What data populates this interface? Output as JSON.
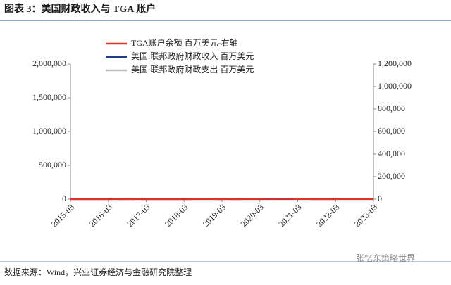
{
  "header": {
    "title": "图表 3：美国财政收入与 TGA 账户"
  },
  "chart_data": {
    "type": "line",
    "categories": [
      "2015-03",
      null,
      null,
      null,
      null,
      null,
      null,
      null,
      null,
      null,
      null,
      null,
      "2016-03",
      null,
      null,
      null,
      null,
      null,
      null,
      null,
      null,
      null,
      null,
      null,
      "2017-03",
      null,
      null,
      null,
      null,
      null,
      null,
      null,
      null,
      null,
      null,
      null,
      "2018-03",
      null,
      null,
      null,
      null,
      null,
      null,
      null,
      null,
      null,
      null,
      null,
      "2019-03",
      null,
      null,
      null,
      null,
      null,
      null,
      null,
      null,
      null,
      null,
      null,
      "2020-03",
      null,
      null,
      null,
      null,
      null,
      null,
      null,
      null,
      null,
      null,
      null,
      "2021-03",
      null,
      null,
      null,
      null,
      null,
      null,
      null,
      null,
      null,
      null,
      null,
      "2022-03",
      null,
      null,
      null,
      null,
      null,
      null,
      null,
      null,
      null,
      null,
      null,
      "2023-03"
    ],
    "series": [
      {
        "name": "TGA账户余额 百万美元-右轴",
        "color": "#e0302c",
        "axis": "y2",
        "values": [
          180,
          250,
          150,
          250,
          200,
          170,
          80,
          120,
          200,
          300,
          260,
          250,
          230,
          360,
          320,
          340,
          290,
          300,
          350,
          380,
          300,
          370,
          350,
          240,
          150,
          220,
          190,
          200,
          160,
          80,
          160,
          200,
          150,
          180,
          240,
          230,
          250,
          320,
          300,
          380,
          330,
          350,
          390,
          380,
          370,
          380,
          330,
          310,
          280,
          330,
          330,
          260,
          240,
          160,
          380,
          380,
          370,
          400,
          410,
          380,
          400,
          1000,
          1050,
          970,
          1070,
          1000,
          1060,
          950,
          960,
          980,
          1010,
          920,
          960,
          900,
          840,
          760,
          460,
          240,
          140,
          120,
          250,
          270,
          150,
          130,
          260,
          960,
          740,
          650,
          610,
          580,
          420,
          570,
          500,
          420,
          440,
          340,
          160
        ]
      },
      {
        "name": "美国:联邦政府财政收入 百万美元",
        "color": "#1f3a8a",
        "values": [
          190,
          470,
          180,
          340,
          220,
          200,
          330,
          220,
          190,
          330,
          340,
          160,
          200,
          450,
          200,
          320,
          210,
          230,
          350,
          220,
          180,
          320,
          340,
          170,
          210,
          460,
          240,
          340,
          230,
          230,
          360,
          240,
          210,
          340,
          360,
          160,
          210,
          510,
          220,
          320,
          230,
          220,
          380,
          250,
          190,
          320,
          370,
          170,
          200,
          530,
          240,
          330,
          220,
          250,
          380,
          250,
          200,
          350,
          380,
          180,
          230,
          240,
          170,
          240,
          560,
          220,
          370,
          250,
          250,
          340,
          370,
          190,
          270,
          440,
          460,
          450,
          260,
          270,
          470,
          290,
          280,
          480,
          460,
          290,
          310,
          860,
          370,
          510,
          260,
          300,
          490,
          320,
          250,
          450,
          450,
          260,
          310
        ]
      },
      {
        "name": "美国:联邦政府财政支出 百万美元",
        "color": "#bdbdbd",
        "values": [
          400,
          420,
          360,
          350,
          420,
          380,
          350,
          410,
          380,
          390,
          410,
          370,
          400,
          380,
          380,
          390,
          430,
          420,
          360,
          430,
          380,
          420,
          450,
          380,
          420,
          380,
          450,
          400,
          440,
          420,
          360,
          500,
          380,
          440,
          470,
          420,
          450,
          380,
          430,
          400,
          450,
          480,
          380,
          520,
          400,
          470,
          490,
          450,
          470,
          420,
          470,
          430,
          500,
          540,
          430,
          510,
          440,
          480,
          480,
          460,
          500,
          1500,
          1150,
          1820,
          1200,
          1100,
          700,
          800,
          780,
          1050,
          900,
          1100,
          1500,
          900,
          820,
          880,
          960,
          850,
          640,
          700,
          720,
          960,
          680,
          650,
          600,
          700,
          650,
          780,
          620,
          600,
          1450,
          880,
          620,
          750,
          700,
          600,
          700
        ]
      }
    ],
    "ylim": [
      0,
      2000000
    ],
    "yticks": [
      0,
      {
        "value": 500000,
        "label": "500,000"
      },
      {
        "value": 1000000,
        "label": "1,000,000"
      },
      {
        "value": 1500000,
        "label": "1,500,000"
      },
      {
        "value": 2000000,
        "label": "2,000,000"
      }
    ],
    "y2lim": [
      0,
      1200000
    ],
    "y2ticks": [
      0,
      {
        "value": 200000,
        "label": "200,000"
      },
      {
        "value": 400000,
        "label": "400,000"
      },
      {
        "value": 600000,
        "label": "600,000"
      },
      {
        "value": 800000,
        "label": "800,000"
      },
      {
        "value": 1000000,
        "label": "1,000,000"
      },
      {
        "value": 1200000,
        "label": "1,200,000"
      }
    ],
    "legend": "upper-left",
    "grid": false
  },
  "footer": {
    "source": "数据来源：Wind，兴业证券经济与金融研究院整理",
    "watermark": "张忆东策略世界"
  }
}
